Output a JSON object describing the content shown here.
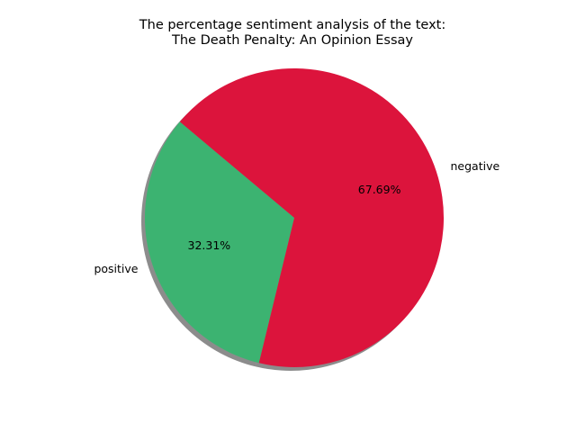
{
  "chart_data": {
    "type": "pie",
    "title_lines": [
      "The percentage sentiment analysis of the text:",
      "The Death Penalty: An Opinion Essay"
    ],
    "slices": [
      {
        "name": "positive",
        "value": 32.31,
        "pct_label": "32.31%",
        "color": "#3cb371"
      },
      {
        "name": "negative",
        "value": 67.69,
        "pct_label": "67.69%",
        "color": "#dc143c"
      }
    ],
    "start_angle_deg": 140,
    "shadow": true
  }
}
